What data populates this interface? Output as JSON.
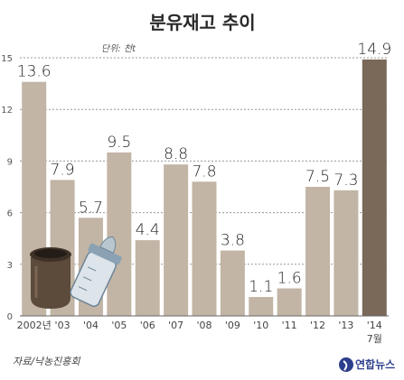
{
  "chart_data": {
    "type": "bar",
    "title": "분유재고 추이",
    "unit": "단위: 천t",
    "categories": [
      "2002년",
      "'03",
      "'04",
      "'05",
      "'06",
      "'07",
      "'08",
      "'09",
      "'10",
      "'11",
      "'12",
      "'13",
      "'14"
    ],
    "category_sublabels": {
      "'14": "7월"
    },
    "values": [
      13.6,
      7.9,
      5.7,
      9.5,
      4.4,
      8.8,
      7.8,
      3.8,
      1.1,
      1.6,
      7.5,
      7.3,
      14.9
    ],
    "value_labels": [
      "13.6",
      "7.9",
      "5.7",
      "9.5",
      "4.4",
      "8.8",
      "7.8",
      "3.8",
      "1.1",
      "1.6",
      "7.5",
      "7.3",
      "14.9"
    ],
    "yticks": [
      0,
      3,
      6,
      9,
      12,
      15
    ],
    "ylim": [
      0,
      15
    ],
    "grid": true,
    "colors": {
      "bar": "#c2b5a5",
      "bar_highlight": "#7a6858",
      "grid": "#999999"
    },
    "highlight_index": 12
  },
  "source": "자료/낙농진흥회",
  "logo_text": "연합뉴스"
}
